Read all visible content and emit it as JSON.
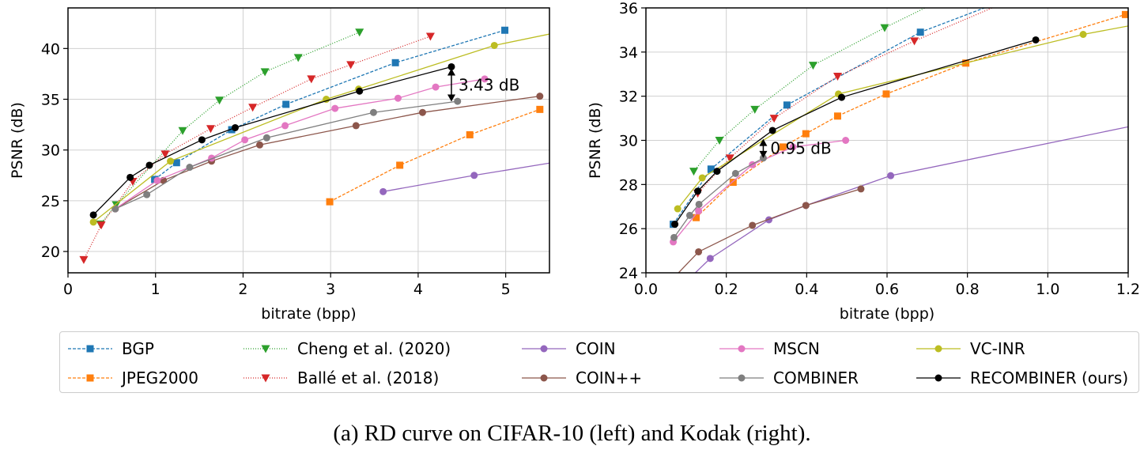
{
  "caption": "(a) RD curve on CIFAR-10 (left) and Kodak (right).",
  "legend": [
    {
      "name": "BGP",
      "color": "#1f77b4",
      "marker": "square",
      "dash": "4,2"
    },
    {
      "name": "Cheng et al. (2020)",
      "color": "#2ca02c",
      "marker": "triangle-down",
      "dash": "1,2"
    },
    {
      "name": "COIN",
      "color": "#9467bd",
      "marker": "circle",
      "dash": ""
    },
    {
      "name": "MSCN",
      "color": "#e377c2",
      "marker": "circle",
      "dash": ""
    },
    {
      "name": "VC-INR",
      "color": "#bcbd22",
      "marker": "circle",
      "dash": ""
    },
    {
      "name": "JPEG2000",
      "color": "#ff7f0e",
      "marker": "square",
      "dash": "4,2"
    },
    {
      "name": "Ballé et al. (2018)",
      "color": "#d62728",
      "marker": "triangle-down",
      "dash": "1,2"
    },
    {
      "name": "COIN++",
      "color": "#8c564b",
      "marker": "circle",
      "dash": ""
    },
    {
      "name": "COMBINER",
      "color": "#7f7f7f",
      "marker": "circle",
      "dash": ""
    },
    {
      "name": "RECOMBINER (ours)",
      "color": "#000000",
      "marker": "circle",
      "dash": ""
    }
  ],
  "chart_data": [
    {
      "type": "line",
      "title": "",
      "xlabel": "bitrate (bpp)",
      "ylabel": "PSNR (dB)",
      "xlim": [
        0,
        5.5
      ],
      "ylim": [
        17.9,
        44
      ],
      "xticks": [
        0,
        1,
        2,
        3,
        4,
        5
      ],
      "yticks": [
        20,
        25,
        30,
        35,
        40
      ],
      "grid": true,
      "annotation": {
        "text": "3.43 dB",
        "x": 4.38,
        "y_from": 38.2,
        "y_to": 34.77
      },
      "series": [
        {
          "name": "BGP",
          "x": [
            0.99,
            1.24,
            1.87,
            2.49,
            3.74,
            4.99
          ],
          "y": [
            27.1,
            28.75,
            32.0,
            34.5,
            38.6,
            41.8
          ]
        },
        {
          "name": "JPEG2000",
          "x": [
            2.99,
            3.79,
            4.59,
            5.39
          ],
          "y": [
            24.9,
            28.5,
            31.5,
            34.0
          ]
        },
        {
          "name": "Cheng et al. (2020)",
          "x": [
            0.37,
            0.55,
            1.31,
            1.73,
            2.25,
            2.63,
            3.33
          ],
          "y": [
            22.7,
            24.6,
            31.9,
            34.9,
            37.7,
            39.1,
            41.6
          ]
        },
        {
          "name": "Ballé et al. (2018)",
          "x": [
            0.18,
            0.38,
            0.74,
            1.11,
            1.63,
            2.11,
            2.78,
            3.23,
            4.14
          ],
          "y": [
            19.2,
            22.6,
            26.9,
            29.6,
            32.1,
            34.2,
            37.0,
            38.4,
            41.2
          ]
        },
        {
          "name": "COIN",
          "x": [
            3.6,
            4.64,
            5.6
          ],
          "y": [
            25.9,
            27.5,
            28.85
          ]
        },
        {
          "name": "COIN++",
          "x": [
            0.54,
            1.09,
            1.64,
            2.19,
            3.29,
            4.05,
            5.39
          ],
          "y": [
            24.2,
            27.0,
            28.9,
            30.5,
            32.4,
            33.7,
            35.3
          ]
        },
        {
          "name": "MSCN",
          "x": [
            0.54,
            1.02,
            1.64,
            2.02,
            2.48,
            3.05,
            3.77,
            4.2,
            4.76
          ],
          "y": [
            24.2,
            27.0,
            29.2,
            31.0,
            32.4,
            34.1,
            35.1,
            36.2,
            37.0
          ]
        },
        {
          "name": "COMBINER",
          "x": [
            0.54,
            0.9,
            1.39,
            2.27,
            3.49,
            4.45
          ],
          "y": [
            24.2,
            25.6,
            28.3,
            31.2,
            33.7,
            34.8
          ]
        },
        {
          "name": "VC-INR",
          "x": [
            0.29,
            1.17,
            2.95,
            3.32,
            4.87,
            5.6
          ],
          "y": [
            22.9,
            28.9,
            35.0,
            36.0,
            40.3,
            41.6
          ]
        },
        {
          "name": "RECOMBINER (ours)",
          "x": [
            0.29,
            0.71,
            0.93,
            1.53,
            1.91,
            3.33,
            4.38
          ],
          "y": [
            23.6,
            27.3,
            28.5,
            31.0,
            32.2,
            35.8,
            38.2
          ]
        }
      ]
    },
    {
      "type": "line",
      "title": "",
      "xlabel": "bitrate (bpp)",
      "ylabel": "PSNR (dB)",
      "xlim": [
        0,
        1.2
      ],
      "ylim": [
        24,
        36
      ],
      "xticks": [
        0.0,
        0.2,
        0.4,
        0.6,
        0.8,
        1.0,
        1.2
      ],
      "yticks": [
        24,
        26,
        28,
        30,
        32,
        34,
        36
      ],
      "grid": true,
      "annotation": {
        "text": "0.95 dB",
        "x": 0.292,
        "y_from": 30.14,
        "y_to": 29.2
      },
      "series": [
        {
          "name": "BGP",
          "x": [
            0.068,
            0.162,
            0.351,
            0.683,
            0.9
          ],
          "y": [
            26.2,
            28.7,
            31.6,
            34.9,
            36.4
          ]
        },
        {
          "name": "JPEG2000",
          "x": [
            0.125,
            0.217,
            0.341,
            0.398,
            0.477,
            0.598,
            0.796,
            1.193
          ],
          "y": [
            26.5,
            28.1,
            29.7,
            30.3,
            31.1,
            32.1,
            33.5,
            35.7
          ]
        },
        {
          "name": "Cheng et al. (2020)",
          "x": [
            0.119,
            0.183,
            0.271,
            0.416,
            0.594,
            0.75
          ],
          "y": [
            28.6,
            30.0,
            31.4,
            33.4,
            35.1,
            36.5
          ]
        },
        {
          "name": "Ballé et al. (2018)",
          "x": [
            0.129,
            0.209,
            0.319,
            0.477,
            0.668,
            0.9
          ],
          "y": [
            27.6,
            29.2,
            31.0,
            32.9,
            34.5,
            36.3
          ]
        },
        {
          "name": "COIN",
          "x": [
            0.1,
            0.16,
            0.306,
            0.398,
            0.609,
            1.25
          ],
          "y": [
            23.6,
            24.65,
            26.4,
            27.05,
            28.4,
            30.8
          ]
        },
        {
          "name": "COIN++",
          "x": [
            0.06,
            0.131,
            0.265,
            0.398,
            0.535
          ],
          "y": [
            23.6,
            24.95,
            26.15,
            27.05,
            27.8
          ]
        },
        {
          "name": "MSCN",
          "x": [
            0.068,
            0.131,
            0.265,
            0.366,
            0.497
          ],
          "y": [
            25.4,
            26.8,
            28.9,
            29.7,
            30.0
          ]
        },
        {
          "name": "COMBINER",
          "x": [
            0.07,
            0.109,
            0.132,
            0.223,
            0.292
          ],
          "y": [
            25.6,
            26.6,
            27.1,
            28.5,
            29.2
          ]
        },
        {
          "name": "VC-INR",
          "x": [
            0.079,
            0.14,
            0.479,
            1.088,
            1.25
          ],
          "y": [
            26.9,
            28.3,
            32.1,
            34.8,
            35.35
          ]
        },
        {
          "name": "RECOMBINER (ours)",
          "x": [
            0.072,
            0.129,
            0.177,
            0.315,
            0.487,
            0.97
          ],
          "y": [
            26.2,
            27.7,
            28.6,
            30.45,
            31.95,
            34.55
          ]
        }
      ]
    }
  ]
}
